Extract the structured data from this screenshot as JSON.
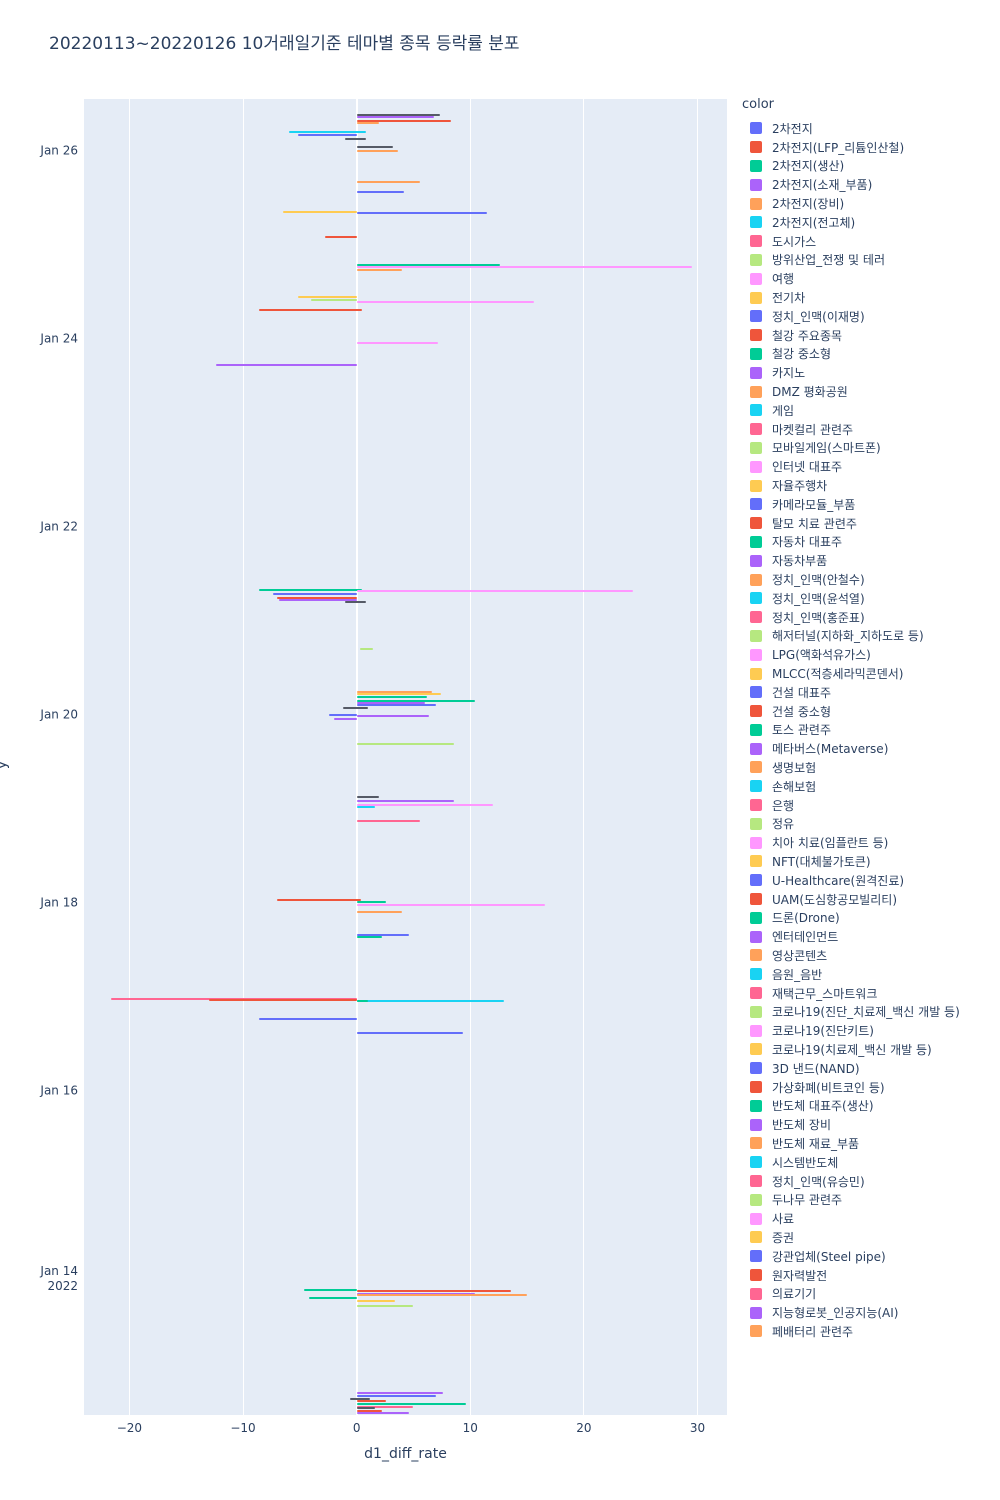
{
  "title": "20220113~20220126 10거래일기준 테마별 종목 등락률 분포",
  "x_axis_title": "d1_diff_rate",
  "y_axis_title": "y",
  "legend": {
    "title": "color",
    "items": [
      {
        "label": "2차전지",
        "color": "blue"
      },
      {
        "label": "2차전지(LFP_리튬인산철)",
        "color": "red"
      },
      {
        "label": "2차전지(생산)",
        "color": "green"
      },
      {
        "label": "2차전지(소재_부품)",
        "color": "purple"
      },
      {
        "label": "2차전지(장비)",
        "color": "orange"
      },
      {
        "label": "2차전지(전고체)",
        "color": "cyan"
      },
      {
        "label": "도시가스",
        "color": "pink"
      },
      {
        "label": "방위산업_전쟁 및 테러",
        "color": "lightgreen"
      },
      {
        "label": "여행",
        "color": "lightpink"
      },
      {
        "label": "전기차",
        "color": "yellow"
      },
      {
        "label": "정치_인맥(이재명)",
        "color": "blue"
      },
      {
        "label": "철강 주요종목",
        "color": "red"
      },
      {
        "label": "철강 중소형",
        "color": "green"
      },
      {
        "label": "카지노",
        "color": "purple"
      },
      {
        "label": "DMZ 평화공원",
        "color": "orange"
      },
      {
        "label": "게임",
        "color": "cyan"
      },
      {
        "label": "마켓컬리 관련주",
        "color": "pink"
      },
      {
        "label": "모바일게임(스마트폰)",
        "color": "lightgreen"
      },
      {
        "label": "인터넷 대표주",
        "color": "lightpink"
      },
      {
        "label": "자율주행차",
        "color": "yellow"
      },
      {
        "label": "카메라모듈_부품",
        "color": "blue"
      },
      {
        "label": "탈모 치료 관련주",
        "color": "red"
      },
      {
        "label": "자동차 대표주",
        "color": "green"
      },
      {
        "label": "자동차부품",
        "color": "purple"
      },
      {
        "label": "정치_인맥(안철수)",
        "color": "orange"
      },
      {
        "label": "정치_인맥(윤석열)",
        "color": "cyan"
      },
      {
        "label": "정치_인맥(홍준표)",
        "color": "pink"
      },
      {
        "label": "해저터널(지하화_지하도로 등)",
        "color": "lightgreen"
      },
      {
        "label": "LPG(액화석유가스)",
        "color": "lightpink"
      },
      {
        "label": "MLCC(적층세라믹콘덴서)",
        "color": "yellow"
      },
      {
        "label": "건설 대표주",
        "color": "blue"
      },
      {
        "label": "건설 중소형",
        "color": "red"
      },
      {
        "label": "토스 관련주",
        "color": "green"
      },
      {
        "label": "메타버스(Metaverse)",
        "color": "purple"
      },
      {
        "label": "생명보험",
        "color": "orange"
      },
      {
        "label": "손해보험",
        "color": "cyan"
      },
      {
        "label": "은행",
        "color": "pink"
      },
      {
        "label": "정유",
        "color": "lightgreen"
      },
      {
        "label": "치아 치료(임플란트 등)",
        "color": "lightpink"
      },
      {
        "label": "NFT(대체불가토큰)",
        "color": "yellow"
      },
      {
        "label": "U-Healthcare(원격진료)",
        "color": "blue"
      },
      {
        "label": "UAM(도심항공모빌리티)",
        "color": "red"
      },
      {
        "label": "드론(Drone)",
        "color": "green"
      },
      {
        "label": "엔터테인먼트",
        "color": "purple"
      },
      {
        "label": "영상콘텐츠",
        "color": "orange"
      },
      {
        "label": "음원_음반",
        "color": "cyan"
      },
      {
        "label": "재택근무_스마트워크",
        "color": "pink"
      },
      {
        "label": "코로나19(진단_치료제_백신 개발 등)",
        "color": "lightgreen"
      },
      {
        "label": "코로나19(진단키트)",
        "color": "lightpink"
      },
      {
        "label": "코로나19(치료제_백신 개발 등)",
        "color": "yellow"
      },
      {
        "label": "3D 낸드(NAND)",
        "color": "blue"
      },
      {
        "label": "가상화폐(비트코인 등)",
        "color": "red"
      },
      {
        "label": "반도체 대표주(생산)",
        "color": "green"
      },
      {
        "label": "반도체 장비",
        "color": "purple"
      },
      {
        "label": "반도체 재료_부품",
        "color": "orange"
      },
      {
        "label": "시스템반도체",
        "color": "cyan"
      },
      {
        "label": "정치_인맥(유승민)",
        "color": "pink"
      },
      {
        "label": "두나무 관련주",
        "color": "lightgreen"
      },
      {
        "label": "사료",
        "color": "lightpink"
      },
      {
        "label": "증권",
        "color": "yellow"
      },
      {
        "label": "강관업체(Steel pipe)",
        "color": "blue"
      },
      {
        "label": "원자력발전",
        "color": "red"
      },
      {
        "label": "의료기기",
        "color": "pink"
      },
      {
        "label": "지능형로봇_인공지능(AI)",
        "color": "purple"
      },
      {
        "label": "페배터리 관련주",
        "color": "orange"
      }
    ]
  },
  "chart_data": {
    "type": "bar",
    "orientation": "horizontal",
    "title": "20220113~20220126 10거래일기준 테마별 종목 등락률 분포",
    "xlabel": "d1_diff_rate",
    "ylabel": "y",
    "x_range": [
      -24,
      32.6
    ],
    "y_range_days": [
      12.55,
      26.55
    ],
    "x_ticks": [
      -20,
      -10,
      0,
      10,
      20,
      30
    ],
    "y_ticks": [
      {
        "day": 26,
        "label": "Jan 26"
      },
      {
        "day": 24,
        "label": "Jan 24"
      },
      {
        "day": 22,
        "label": "Jan 22"
      },
      {
        "day": 20,
        "label": "Jan 20"
      },
      {
        "day": 18,
        "label": "Jan 18"
      },
      {
        "day": 16,
        "label": "Jan 16"
      },
      {
        "day": 14,
        "label": "Jan 14",
        "sub": "2022"
      }
    ],
    "palette": {
      "blue": "#636EFA",
      "red": "#EF553B",
      "green": "#00CC96",
      "purple": "#AB63FA",
      "orange": "#FFA15A",
      "cyan": "#19D3F3",
      "pink": "#FF6692",
      "lightgreen": "#B6E880",
      "lightpink": "#FF97FF",
      "yellow": "#FECB52",
      "dark": "#555a66"
    },
    "bars": [
      {
        "d": 26.38,
        "x0": 0,
        "x1": 7.3,
        "c": "dark"
      },
      {
        "d": 26.36,
        "x0": 0,
        "x1": 6.8,
        "c": "purple"
      },
      {
        "d": 26.32,
        "x0": 0,
        "x1": 8.3,
        "c": "red"
      },
      {
        "d": 26.3,
        "x0": 0,
        "x1": 2.0,
        "c": "orange"
      },
      {
        "d": 26.2,
        "x0": -6.0,
        "x1": 0.8,
        "c": "cyan"
      },
      {
        "d": 26.17,
        "x0": -5.2,
        "x1": 0,
        "c": "blue"
      },
      {
        "d": 26.13,
        "x0": -1.0,
        "x1": 0.8,
        "c": "dark"
      },
      {
        "d": 26.04,
        "x0": 0,
        "x1": 3.2,
        "c": "dark"
      },
      {
        "d": 26.0,
        "x0": 0,
        "x1": 3.6,
        "c": "orange"
      },
      {
        "d": 25.67,
        "x0": 0,
        "x1": 5.6,
        "c": "orange"
      },
      {
        "d": 25.56,
        "x0": 0,
        "x1": 4.2,
        "c": "blue"
      },
      {
        "d": 25.35,
        "x0": -6.5,
        "x1": 0,
        "c": "yellow"
      },
      {
        "d": 25.34,
        "x0": 0,
        "x1": 11.5,
        "c": "blue"
      },
      {
        "d": 25.08,
        "x0": -2.8,
        "x1": 0,
        "c": "red"
      },
      {
        "d": 24.78,
        "x0": 0,
        "x1": 12.6,
        "c": "green"
      },
      {
        "d": 24.76,
        "x0": 0,
        "x1": 29.5,
        "c": "lightpink"
      },
      {
        "d": 24.73,
        "x0": 0,
        "x1": 4.0,
        "c": "orange"
      },
      {
        "d": 24.44,
        "x0": -5.2,
        "x1": 0,
        "c": "yellow"
      },
      {
        "d": 24.41,
        "x0": -4.0,
        "x1": 0,
        "c": "lightgreen"
      },
      {
        "d": 24.39,
        "x0": 0,
        "x1": 15.6,
        "c": "lightpink"
      },
      {
        "d": 24.31,
        "x0": -8.6,
        "x1": 0.5,
        "c": "red"
      },
      {
        "d": 23.95,
        "x0": 0,
        "x1": 7.2,
        "c": "lightpink"
      },
      {
        "d": 23.72,
        "x0": -12.4,
        "x1": 0,
        "c": "purple"
      },
      {
        "d": 21.33,
        "x0": -8.6,
        "x1": 0.5,
        "c": "green"
      },
      {
        "d": 21.32,
        "x0": 0,
        "x1": 24.3,
        "c": "lightpink"
      },
      {
        "d": 21.28,
        "x0": -7.4,
        "x1": 0,
        "c": "blue"
      },
      {
        "d": 21.24,
        "x0": -7.0,
        "x1": 0,
        "c": "red"
      },
      {
        "d": 21.22,
        "x0": -6.8,
        "x1": 0,
        "c": "purple"
      },
      {
        "d": 21.2,
        "x0": -1.0,
        "x1": 0.8,
        "c": "dark"
      },
      {
        "d": 20.7,
        "x0": 0.3,
        "x1": 1.4,
        "c": "lightgreen"
      },
      {
        "d": 20.24,
        "x0": 0,
        "x1": 6.6,
        "c": "orange"
      },
      {
        "d": 20.22,
        "x0": 0,
        "x1": 7.4,
        "c": "yellow"
      },
      {
        "d": 20.19,
        "x0": 0,
        "x1": 6.2,
        "c": "green"
      },
      {
        "d": 20.15,
        "x0": 0,
        "x1": 10.4,
        "c": "green"
      },
      {
        "d": 20.12,
        "x0": 0,
        "x1": 6.0,
        "c": "purple"
      },
      {
        "d": 20.1,
        "x0": 0,
        "x1": 7.0,
        "c": "blue"
      },
      {
        "d": 20.07,
        "x0": -1.2,
        "x1": 1.0,
        "c": "dark"
      },
      {
        "d": 20.0,
        "x0": -2.4,
        "x1": 0,
        "c": "blue"
      },
      {
        "d": 19.99,
        "x0": 0,
        "x1": 6.4,
        "c": "purple"
      },
      {
        "d": 19.96,
        "x0": -2.0,
        "x1": 0,
        "c": "purple"
      },
      {
        "d": 19.69,
        "x0": 0,
        "x1": 8.6,
        "c": "lightgreen"
      },
      {
        "d": 19.12,
        "x0": 0,
        "x1": 2.0,
        "c": "dark"
      },
      {
        "d": 19.08,
        "x0": 0,
        "x1": 8.6,
        "c": "purple"
      },
      {
        "d": 19.04,
        "x0": 0,
        "x1": 12.0,
        "c": "lightpink"
      },
      {
        "d": 19.02,
        "x0": 0,
        "x1": 1.6,
        "c": "cyan"
      },
      {
        "d": 18.87,
        "x0": 0,
        "x1": 5.6,
        "c": "pink"
      },
      {
        "d": 18.03,
        "x0": -7.0,
        "x1": 0.4,
        "c": "red"
      },
      {
        "d": 18.01,
        "x0": 0,
        "x1": 2.6,
        "c": "green"
      },
      {
        "d": 17.98,
        "x0": 0,
        "x1": 16.6,
        "c": "lightpink"
      },
      {
        "d": 17.9,
        "x0": 0,
        "x1": 4.0,
        "c": "orange"
      },
      {
        "d": 17.66,
        "x0": 0,
        "x1": 4.6,
        "c": "blue"
      },
      {
        "d": 17.64,
        "x0": 0,
        "x1": 2.2,
        "c": "green"
      },
      {
        "d": 16.98,
        "x0": -21.6,
        "x1": 0,
        "c": "pink"
      },
      {
        "d": 16.97,
        "x0": -13.0,
        "x1": 0,
        "c": "red"
      },
      {
        "d": 16.96,
        "x0": 0,
        "x1": 13.0,
        "c": "cyan"
      },
      {
        "d": 16.95,
        "x0": 0,
        "x1": 1.0,
        "c": "green"
      },
      {
        "d": 16.76,
        "x0": -8.6,
        "x1": 0,
        "c": "blue"
      },
      {
        "d": 16.61,
        "x0": 0,
        "x1": 9.4,
        "c": "blue"
      },
      {
        "d": 13.88,
        "x0": -4.6,
        "x1": 0,
        "c": "green"
      },
      {
        "d": 13.87,
        "x0": 0,
        "x1": 13.6,
        "c": "red"
      },
      {
        "d": 13.84,
        "x0": 0,
        "x1": 10.4,
        "c": "purple"
      },
      {
        "d": 13.83,
        "x0": 0,
        "x1": 15.0,
        "c": "orange"
      },
      {
        "d": 13.79,
        "x0": -4.2,
        "x1": 0,
        "c": "green"
      },
      {
        "d": 13.76,
        "x0": 0,
        "x1": 3.4,
        "c": "yellow"
      },
      {
        "d": 13.71,
        "x0": 0,
        "x1": 5.0,
        "c": "lightgreen"
      },
      {
        "d": 12.78,
        "x0": 0,
        "x1": 7.6,
        "c": "purple"
      },
      {
        "d": 12.75,
        "x0": 0,
        "x1": 7.0,
        "c": "blue"
      },
      {
        "d": 12.72,
        "x0": -0.6,
        "x1": 1.2,
        "c": "dark"
      },
      {
        "d": 12.7,
        "x0": 0,
        "x1": 2.6,
        "c": "red"
      },
      {
        "d": 12.67,
        "x0": 0,
        "x1": 9.6,
        "c": "green"
      },
      {
        "d": 12.64,
        "x0": 0,
        "x1": 5.0,
        "c": "pink"
      },
      {
        "d": 12.62,
        "x0": 0,
        "x1": 1.6,
        "c": "dark"
      },
      {
        "d": 12.59,
        "x0": 0,
        "x1": 2.2,
        "c": "red"
      },
      {
        "d": 12.57,
        "x0": 0,
        "x1": 4.6,
        "c": "purple"
      }
    ]
  }
}
